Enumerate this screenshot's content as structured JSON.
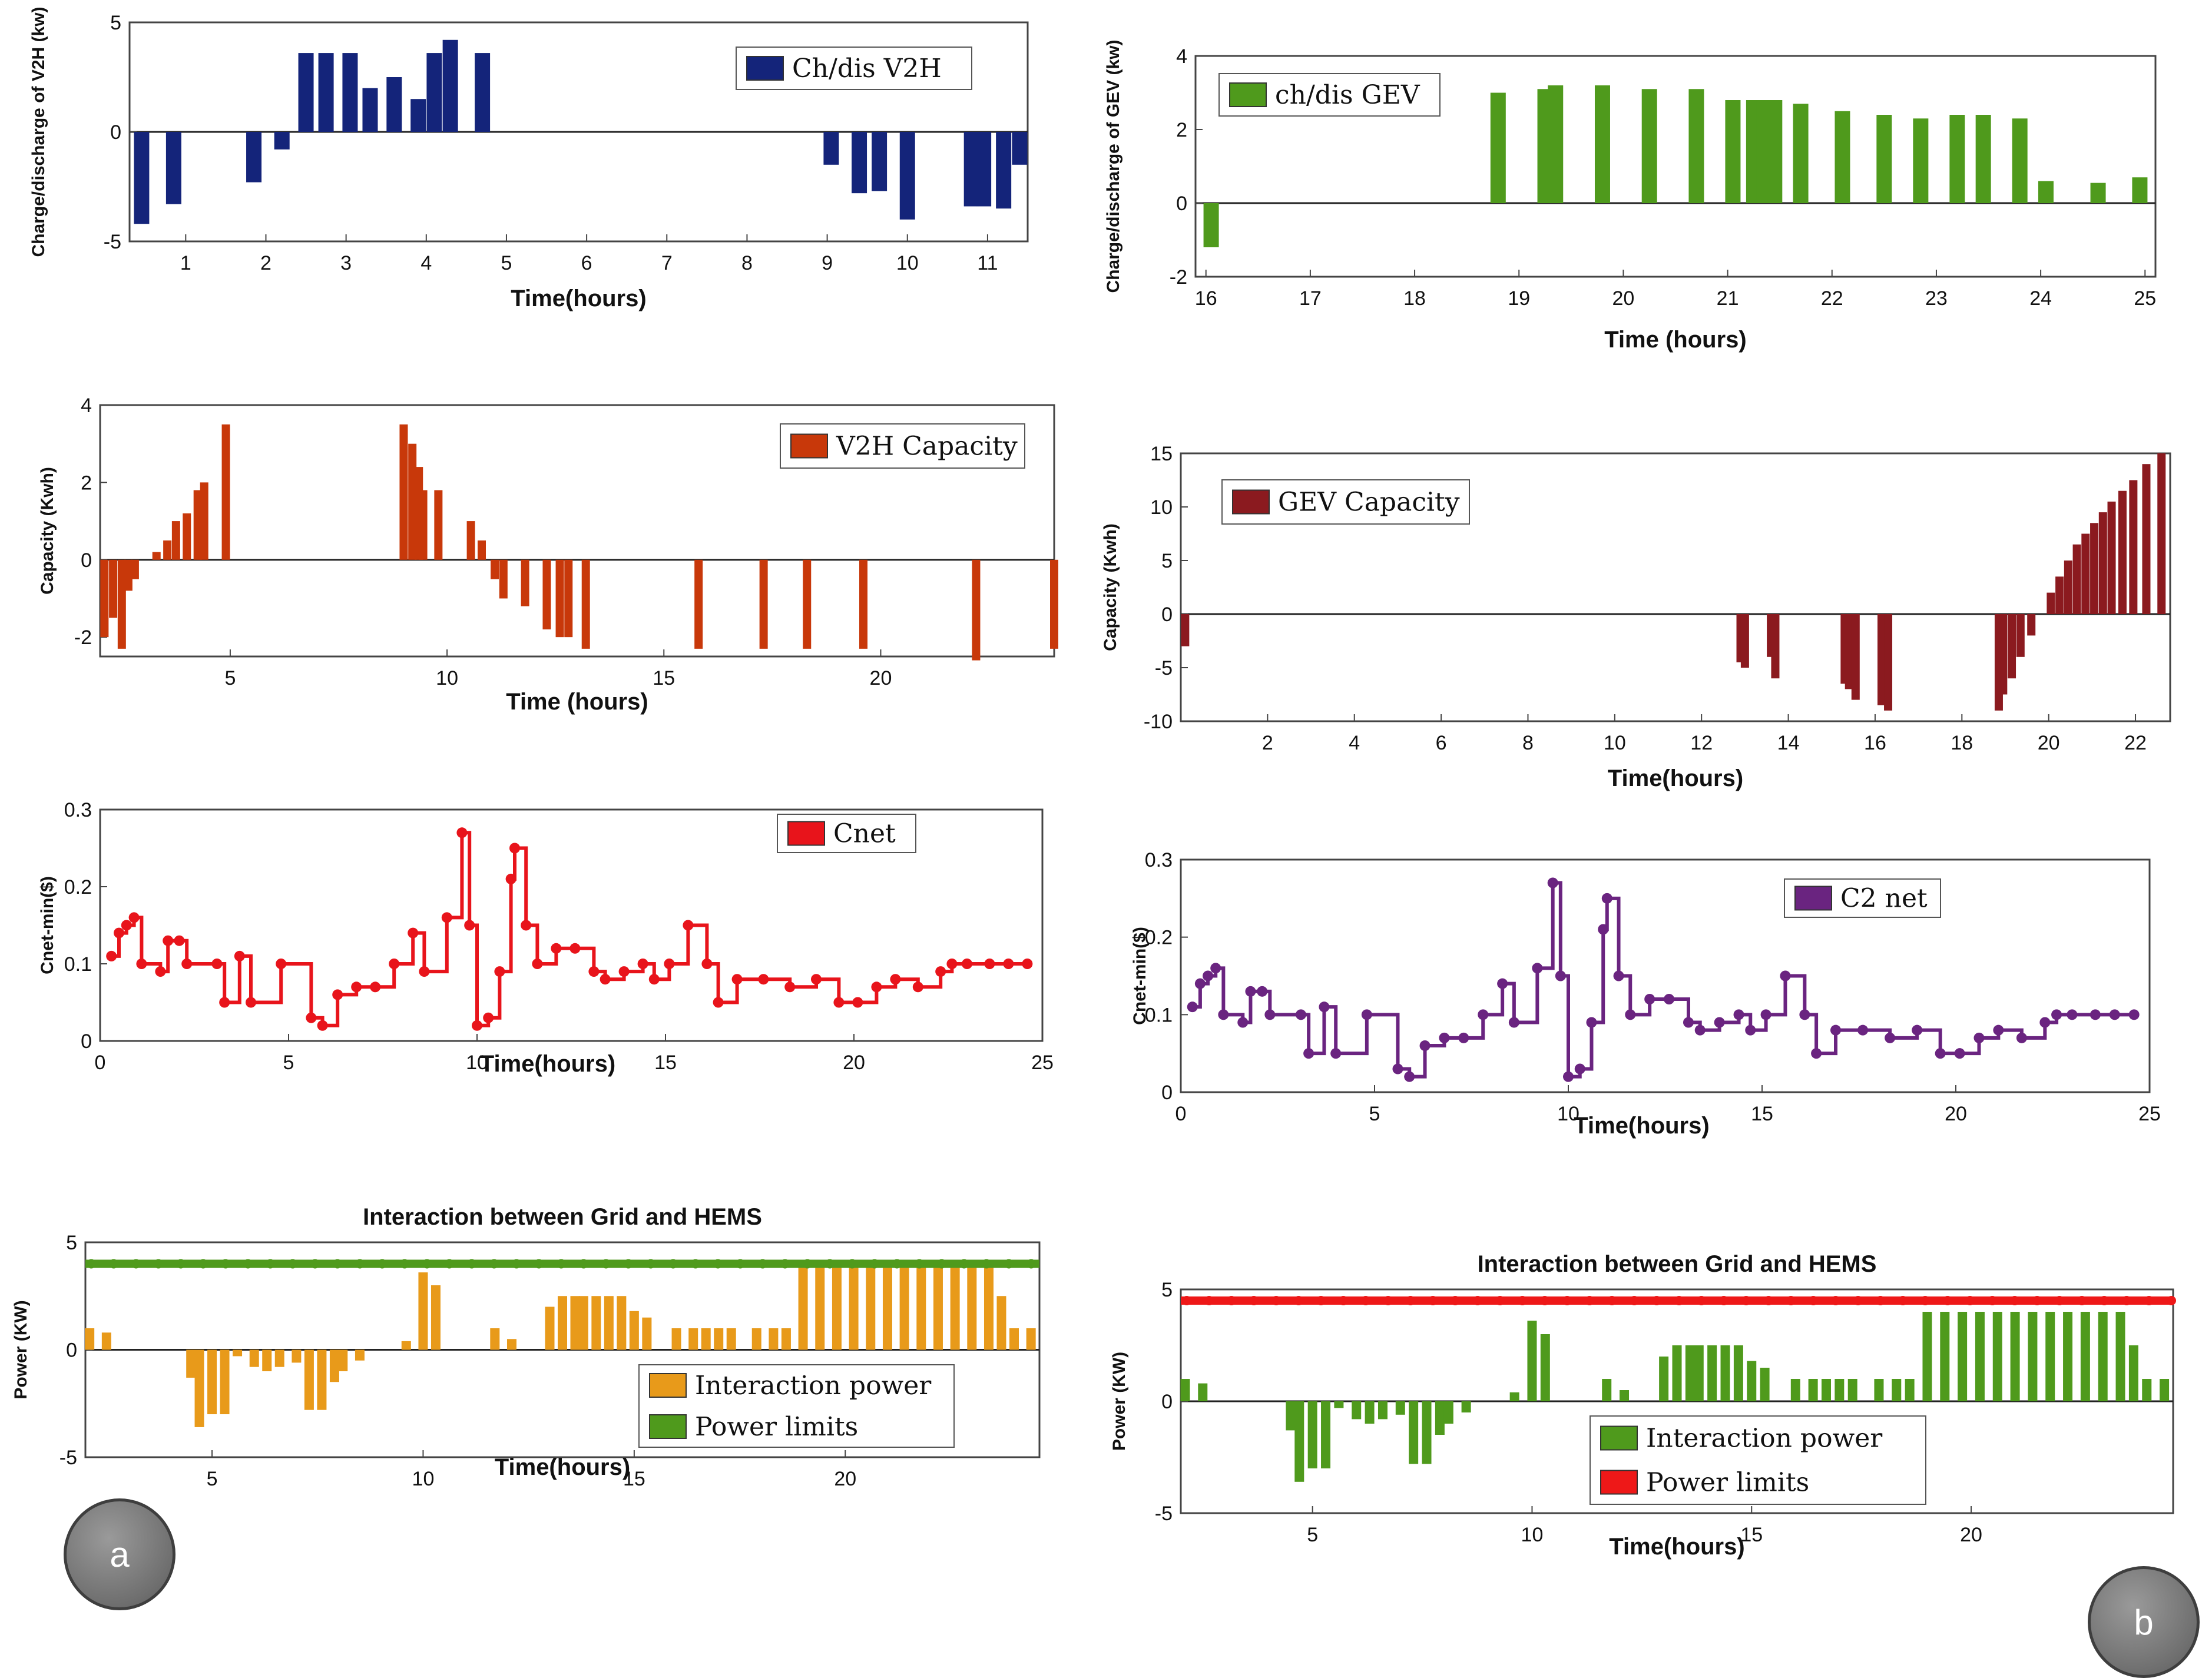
{
  "badges": {
    "a": "a",
    "b": "b"
  },
  "chart_data": [
    {
      "type": "bar",
      "title": "",
      "xlabel": "Time(hours)",
      "ylabel": "Charge/discharge of V2H (kw)",
      "legend": [
        "Ch/dis V2H"
      ],
      "color": "#14247a",
      "xlim": [
        0.3,
        11.5
      ],
      "ylim": [
        -5,
        5
      ],
      "xticks": [
        1,
        2,
        3,
        4,
        5,
        6,
        7,
        8,
        9,
        10,
        11
      ],
      "yticks": [
        -5,
        0,
        5
      ],
      "x": [
        0.45,
        0.85,
        1.85,
        2.2,
        2.5,
        2.75,
        3.05,
        3.3,
        3.6,
        3.9,
        4.1,
        4.3,
        4.7,
        9.05,
        9.4,
        9.65,
        10.0,
        10.8,
        10.95,
        11.2,
        11.4
      ],
      "values": [
        -4.2,
        -3.3,
        -2.3,
        -0.8,
        3.6,
        3.6,
        3.6,
        2.0,
        2.5,
        1.5,
        3.6,
        4.2,
        3.6,
        -1.5,
        -2.8,
        -2.7,
        -4.0,
        -3.4,
        -3.4,
        -3.5,
        -1.5
      ]
    },
    {
      "type": "bar",
      "title": "",
      "xlabel": "Time (hours)",
      "ylabel": "Charge/discharge of GEV (kw)",
      "legend": [
        "ch/dis GEV"
      ],
      "color": "#4f9a1c",
      "xlim": [
        15.9,
        25.1
      ],
      "ylim": [
        -2,
        4
      ],
      "xticks": [
        16,
        17,
        18,
        19,
        20,
        21,
        22,
        23,
        24,
        25
      ],
      "yticks": [
        -2,
        0,
        2,
        4
      ],
      "x": [
        16.05,
        18.8,
        19.25,
        19.35,
        19.8,
        20.25,
        20.7,
        21.05,
        21.25,
        21.35,
        21.45,
        21.7,
        22.1,
        22.5,
        22.85,
        23.2,
        23.45,
        23.8,
        24.05,
        24.55,
        24.95
      ],
      "values": [
        -1.2,
        3.0,
        3.1,
        3.2,
        3.2,
        3.1,
        3.1,
        2.8,
        2.8,
        2.8,
        2.8,
        2.7,
        2.5,
        2.4,
        2.3,
        2.4,
        2.4,
        2.3,
        0.6,
        0.55,
        0.7
      ]
    },
    {
      "type": "bar",
      "title": "",
      "xlabel": "Time (hours)",
      "ylabel": "Capacity (Kwh)",
      "legend": [
        "V2H Capacity"
      ],
      "color": "#c8380a",
      "xlim": [
        2.0,
        24.0
      ],
      "ylim": [
        -2.5,
        4
      ],
      "xticks": [
        5,
        10,
        15,
        20
      ],
      "ytick_labels": [
        "-2",
        "0",
        "2",
        "4"
      ],
      "yticks": [
        -2,
        0,
        2,
        4
      ],
      "x": [
        2.1,
        2.3,
        2.5,
        2.65,
        2.8,
        3.3,
        3.55,
        3.75,
        4.0,
        4.25,
        4.4,
        4.9,
        9.0,
        9.2,
        9.35,
        9.45,
        9.8,
        10.55,
        10.8,
        11.1,
        11.3,
        11.8,
        12.3,
        12.6,
        12.8,
        13.2,
        15.8,
        17.3,
        18.3,
        19.6,
        22.2,
        24.0
      ],
      "values": [
        -2.0,
        -1.5,
        -2.3,
        -0.8,
        -0.5,
        0.2,
        0.5,
        1.0,
        1.2,
        1.8,
        2.0,
        3.5,
        3.5,
        3.0,
        2.4,
        1.8,
        1.8,
        1.0,
        0.5,
        -0.5,
        -1.0,
        -1.2,
        -1.8,
        -2.0,
        -2.0,
        -2.3,
        -2.3,
        -2.3,
        -2.3,
        -2.3,
        -2.6,
        -2.3
      ]
    },
    {
      "type": "bar",
      "title": "",
      "xlabel": "Time(hours)",
      "ylabel": "Capacity (Kwh)",
      "legend": [
        "GEV Capacity"
      ],
      "color": "#8b1a1f",
      "xlim": [
        0.0,
        22.8
      ],
      "ylim": [
        -10,
        15
      ],
      "xticks": [
        2,
        4,
        6,
        8,
        10,
        12,
        14,
        16,
        18,
        20,
        22
      ],
      "yticks": [
        -10,
        -5,
        0,
        5,
        10,
        15
      ],
      "x": [
        0.1,
        12.9,
        13.0,
        13.6,
        13.7,
        15.3,
        15.4,
        15.55,
        16.15,
        16.3,
        18.85,
        18.95,
        19.15,
        19.35,
        19.6,
        20.05,
        20.25,
        20.45,
        20.65,
        20.85,
        21.05,
        21.25,
        21.45,
        21.7,
        21.95,
        22.25,
        22.6
      ],
      "values": [
        -3.0,
        -4.5,
        -5.0,
        -4.0,
        -6.0,
        -6.5,
        -7.0,
        -8.0,
        -8.5,
        -9.0,
        -9.0,
        -7.5,
        -6.0,
        -4.0,
        -2.0,
        2.0,
        3.5,
        5.0,
        6.5,
        7.5,
        8.5,
        9.5,
        10.5,
        11.5,
        12.5,
        14.0,
        15.0
      ]
    },
    {
      "type": "line",
      "title": "",
      "xlabel": "Time(hours)",
      "ylabel": "Cnet-min($)",
      "legend": [
        "Cnet"
      ],
      "color": "#e8141b",
      "step": true,
      "markers": true,
      "xlim": [
        0,
        25
      ],
      "ylim": [
        0,
        0.3
      ],
      "xticks": [
        0,
        5,
        10,
        15,
        20,
        25
      ],
      "yticks": [
        0,
        0.1,
        0.2,
        0.3
      ],
      "x": [
        0.3,
        0.5,
        0.7,
        0.9,
        1.1,
        1.6,
        1.8,
        2.1,
        2.3,
        3.1,
        3.3,
        3.7,
        4.0,
        4.8,
        5.6,
        5.9,
        6.3,
        6.8,
        7.3,
        7.8,
        8.3,
        8.6,
        9.2,
        9.6,
        9.8,
        10.0,
        10.3,
        10.6,
        10.9,
        11.0,
        11.3,
        11.6,
        12.1,
        12.6,
        13.1,
        13.4,
        13.9,
        14.4,
        14.7,
        15.1,
        15.6,
        16.1,
        16.4,
        16.9,
        17.6,
        18.3,
        19.0,
        19.6,
        20.1,
        20.6,
        21.1,
        21.7,
        22.3,
        22.6,
        23.0,
        23.6,
        24.1,
        24.6
      ],
      "values": [
        0.11,
        0.14,
        0.15,
        0.16,
        0.1,
        0.09,
        0.13,
        0.13,
        0.1,
        0.1,
        0.05,
        0.11,
        0.05,
        0.1,
        0.03,
        0.02,
        0.06,
        0.07,
        0.07,
        0.1,
        0.14,
        0.09,
        0.16,
        0.27,
        0.15,
        0.02,
        0.03,
        0.09,
        0.21,
        0.25,
        0.15,
        0.1,
        0.12,
        0.12,
        0.09,
        0.08,
        0.09,
        0.1,
        0.08,
        0.1,
        0.15,
        0.1,
        0.05,
        0.08,
        0.08,
        0.07,
        0.08,
        0.05,
        0.05,
        0.07,
        0.08,
        0.07,
        0.09,
        0.1,
        0.1,
        0.1,
        0.1,
        0.1
      ]
    },
    {
      "type": "line",
      "title": "",
      "xlabel": "Time(hours)",
      "ylabel": "Cnet-min($)",
      "legend": [
        "C2 net"
      ],
      "color": "#6a2480",
      "step": true,
      "markers": true,
      "xlim": [
        0,
        25
      ],
      "ylim": [
        0,
        0.3
      ],
      "xticks": [
        0,
        5,
        10,
        15,
        20,
        25
      ],
      "yticks": [
        0,
        0.1,
        0.2,
        0.3
      ],
      "x": [
        0.3,
        0.5,
        0.7,
        0.9,
        1.1,
        1.6,
        1.8,
        2.1,
        2.3,
        3.1,
        3.3,
        3.7,
        4.0,
        4.8,
        5.6,
        5.9,
        6.3,
        6.8,
        7.3,
        7.8,
        8.3,
        8.6,
        9.2,
        9.6,
        9.8,
        10.0,
        10.3,
        10.6,
        10.9,
        11.0,
        11.3,
        11.6,
        12.1,
        12.6,
        13.1,
        13.4,
        13.9,
        14.4,
        14.7,
        15.1,
        15.6,
        16.1,
        16.4,
        16.9,
        17.6,
        18.3,
        19.0,
        19.6,
        20.1,
        20.6,
        21.1,
        21.7,
        22.3,
        22.6,
        23.0,
        23.6,
        24.1,
        24.6
      ],
      "values": [
        0.11,
        0.14,
        0.15,
        0.16,
        0.1,
        0.09,
        0.13,
        0.13,
        0.1,
        0.1,
        0.05,
        0.11,
        0.05,
        0.1,
        0.03,
        0.02,
        0.06,
        0.07,
        0.07,
        0.1,
        0.14,
        0.09,
        0.16,
        0.27,
        0.15,
        0.02,
        0.03,
        0.09,
        0.21,
        0.25,
        0.15,
        0.1,
        0.12,
        0.12,
        0.09,
        0.08,
        0.09,
        0.1,
        0.08,
        0.1,
        0.15,
        0.1,
        0.05,
        0.08,
        0.08,
        0.07,
        0.08,
        0.05,
        0.05,
        0.07,
        0.08,
        0.07,
        0.09,
        0.1,
        0.1,
        0.1,
        0.1,
        0.1
      ]
    },
    {
      "type": "bar+line",
      "title": "Interaction between Grid and HEMS",
      "xlabel": "Time(hours)",
      "ylabel": "Power (KW)",
      "legend": [
        "Interaction power",
        "Power limits"
      ],
      "bar_color": "#e89a1a",
      "line_color": "#4f9a1c",
      "xlim": [
        2,
        24.6
      ],
      "ylim": [
        -5,
        5
      ],
      "xticks": [
        5,
        10,
        15,
        20
      ],
      "yticks": [
        -5,
        0,
        5
      ],
      "limit_value": 4,
      "x": [
        2.1,
        2.5,
        4.5,
        4.7,
        5.0,
        5.3,
        5.6,
        6.0,
        6.3,
        6.6,
        7.0,
        7.3,
        7.6,
        7.9,
        8.1,
        8.5,
        9.6,
        10.0,
        10.3,
        11.7,
        12.1,
        13.0,
        13.3,
        13.6,
        13.8,
        14.1,
        14.4,
        14.7,
        15.0,
        15.3,
        16.0,
        16.4,
        16.7,
        17.0,
        17.3,
        17.9,
        18.3,
        18.6,
        19.0,
        19.4,
        19.8,
        20.2,
        20.6,
        21.0,
        21.4,
        21.8,
        22.2,
        22.6,
        23.0,
        23.4,
        23.7,
        24.0,
        24.4
      ],
      "values": [
        1.0,
        0.8,
        -1.3,
        -3.6,
        -3.0,
        -3.0,
        -0.3,
        -0.8,
        -1.0,
        -0.8,
        -0.6,
        -2.8,
        -2.8,
        -1.5,
        -1.0,
        -0.5,
        0.4,
        3.6,
        3.0,
        1.0,
        0.5,
        2.0,
        2.5,
        2.5,
        2.5,
        2.5,
        2.5,
        2.5,
        1.8,
        1.5,
        1.0,
        1.0,
        1.0,
        1.0,
        1.0,
        1.0,
        1.0,
        1.0,
        4.0,
        4.0,
        4.0,
        4.0,
        4.0,
        4.0,
        4.0,
        4.0,
        4.0,
        4.0,
        4.0,
        4.0,
        2.5,
        1.0,
        1.0
      ]
    },
    {
      "type": "bar+line",
      "title": "Interaction between Grid and HEMS",
      "xlabel": "Time(hours)",
      "ylabel": "Power (KW)",
      "legend": [
        "Interaction power",
        "Power limits"
      ],
      "bar_color": "#4f9a1c",
      "line_color": "#ee1818",
      "xlim": [
        2,
        24.6
      ],
      "ylim": [
        -5,
        5
      ],
      "xticks": [
        5,
        10,
        15,
        20
      ],
      "yticks": [
        -5,
        0,
        5
      ],
      "limit_value": 4.5,
      "x": [
        2.1,
        2.5,
        4.5,
        4.7,
        5.0,
        5.3,
        5.6,
        6.0,
        6.3,
        6.6,
        7.0,
        7.3,
        7.6,
        7.9,
        8.1,
        8.5,
        9.6,
        10.0,
        10.3,
        11.7,
        12.1,
        13.0,
        13.3,
        13.6,
        13.8,
        14.1,
        14.4,
        14.7,
        15.0,
        15.3,
        16.0,
        16.4,
        16.7,
        17.0,
        17.3,
        17.9,
        18.3,
        18.6,
        19.0,
        19.4,
        19.8,
        20.2,
        20.6,
        21.0,
        21.4,
        21.8,
        22.2,
        22.6,
        23.0,
        23.4,
        23.7,
        24.0,
        24.4
      ],
      "values": [
        1.0,
        0.8,
        -1.3,
        -3.6,
        -3.0,
        -3.0,
        -0.3,
        -0.8,
        -1.0,
        -0.8,
        -0.6,
        -2.8,
        -2.8,
        -1.5,
        -1.0,
        -0.5,
        0.4,
        3.6,
        3.0,
        1.0,
        0.5,
        2.0,
        2.5,
        2.5,
        2.5,
        2.5,
        2.5,
        2.5,
        1.8,
        1.5,
        1.0,
        1.0,
        1.0,
        1.0,
        1.0,
        1.0,
        1.0,
        1.0,
        4.0,
        4.0,
        4.0,
        4.0,
        4.0,
        4.0,
        4.0,
        4.0,
        4.0,
        4.0,
        4.0,
        4.0,
        2.5,
        1.0,
        1.0
      ]
    }
  ]
}
